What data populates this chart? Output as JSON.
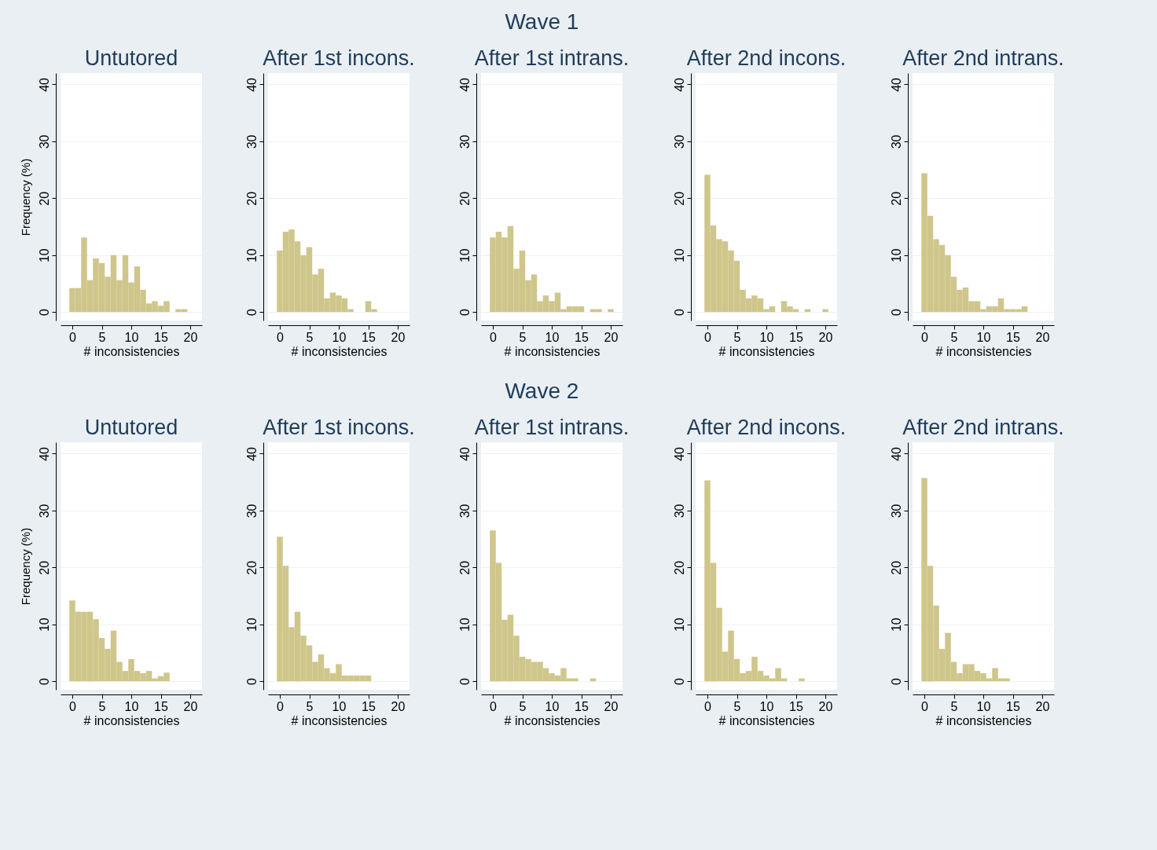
{
  "chart_data": [
    {
      "type": "other",
      "title": "Wave 1"
    },
    {
      "type": "histogram",
      "title": "Untutored",
      "xlabel": "# inconsistencies",
      "ylabel": "Frequency (%)",
      "color": "#cfc68b",
      "grid": "y",
      "xlim": [
        -2,
        22
      ],
      "ylim": [
        -1.5,
        42
      ],
      "xticks": [
        0,
        5,
        10,
        15,
        20
      ],
      "yticks": [
        0,
        10,
        20,
        30,
        40
      ],
      "bins": [
        -0.5,
        0.5,
        1.5,
        2.5,
        3.5,
        4.5,
        5.5,
        6.5,
        7.5,
        8.5,
        9.5,
        10.5,
        11.5,
        12.5,
        13.5,
        14.5,
        15.5,
        16.5,
        17.5,
        18.5,
        19.5,
        20.5
      ],
      "values": [
        4.2,
        4.2,
        13.1,
        5.6,
        9.4,
        8.6,
        6.2,
        10,
        5.6,
        10,
        5.2,
        8,
        3.9,
        1.5,
        1.9,
        1.1,
        1.9,
        0,
        0.5,
        0.5,
        0
      ]
    },
    {
      "type": "histogram",
      "title": "After 1st incons.",
      "xlabel": "# inconsistencies",
      "color": "#cfc68b",
      "grid": "y",
      "xlim": [
        -2,
        22
      ],
      "ylim": [
        -1.5,
        42
      ],
      "xticks": [
        0,
        5,
        10,
        15,
        20
      ],
      "yticks": [
        0,
        10,
        20,
        30,
        40
      ],
      "bins": [
        -0.5,
        0.5,
        1.5,
        2.5,
        3.5,
        4.5,
        5.5,
        6.5,
        7.5,
        8.5,
        9.5,
        10.5,
        11.5,
        12.5,
        13.5,
        14.5,
        15.5,
        16.5,
        17.5,
        18.5,
        19.5,
        20.5
      ],
      "values": [
        10.8,
        14.1,
        14.5,
        12.4,
        10,
        11.4,
        6.6,
        7.6,
        2.4,
        3.4,
        2.9,
        2.4,
        0.5,
        0,
        0,
        1.9,
        0.5,
        0,
        0,
        0,
        0
      ]
    },
    {
      "type": "histogram",
      "title": "After 1st intrans.",
      "xlabel": "# inconsistencies",
      "color": "#cfc68b",
      "grid": "y",
      "xlim": [
        -2,
        22
      ],
      "ylim": [
        -1.5,
        42
      ],
      "xticks": [
        0,
        5,
        10,
        15,
        20
      ],
      "yticks": [
        0,
        10,
        20,
        30,
        40
      ],
      "bins": [
        -0.5,
        0.5,
        1.5,
        2.5,
        3.5,
        4.5,
        5.5,
        6.5,
        7.5,
        8.5,
        9.5,
        10.5,
        11.5,
        12.5,
        13.5,
        14.5,
        15.5,
        16.5,
        17.5,
        18.5,
        19.5,
        20.5
      ],
      "values": [
        13.1,
        14.1,
        13.1,
        15.1,
        7.6,
        10.8,
        5.6,
        6.6,
        1.9,
        2.9,
        1.9,
        3.4,
        0.5,
        1,
        1,
        1,
        0,
        0.5,
        0.5,
        0,
        0.5
      ]
    },
    {
      "type": "histogram",
      "title": "After 2nd incons.",
      "xlabel": "# inconsistencies",
      "color": "#cfc68b",
      "grid": "y",
      "xlim": [
        -2,
        22
      ],
      "ylim": [
        -1.5,
        42
      ],
      "xticks": [
        0,
        5,
        10,
        15,
        20
      ],
      "yticks": [
        0,
        10,
        20,
        30,
        40
      ],
      "bins": [
        -0.5,
        0.5,
        1.5,
        2.5,
        3.5,
        4.5,
        5.5,
        6.5,
        7.5,
        8.5,
        9.5,
        10.5,
        11.5,
        12.5,
        13.5,
        14.5,
        15.5,
        16.5,
        17.5,
        18.5,
        19.5,
        20.5
      ],
      "values": [
        24.1,
        15.2,
        12.8,
        12.4,
        10.8,
        9,
        3.9,
        2.4,
        2.9,
        2.4,
        0.5,
        1,
        0,
        1.9,
        1,
        0.5,
        0,
        0.5,
        0,
        0,
        0.5
      ]
    },
    {
      "type": "histogram",
      "title": "After 2nd intrans.",
      "xlabel": "# inconsistencies",
      "color": "#cfc68b",
      "grid": "y",
      "xlim": [
        -2,
        22
      ],
      "ylim": [
        -1.5,
        42
      ],
      "xticks": [
        0,
        5,
        10,
        15,
        20
      ],
      "yticks": [
        0,
        10,
        20,
        30,
        40
      ],
      "bins": [
        -0.5,
        0.5,
        1.5,
        2.5,
        3.5,
        4.5,
        5.5,
        6.5,
        7.5,
        8.5,
        9.5,
        10.5,
        11.5,
        12.5,
        13.5,
        14.5,
        15.5,
        16.5,
        17.5,
        18.5,
        19.5,
        20.5
      ],
      "values": [
        24.4,
        16.9,
        12.8,
        11.8,
        10,
        6.2,
        3.9,
        4.3,
        1.9,
        1.9,
        0.5,
        1,
        1,
        2.4,
        0.5,
        0.5,
        0.5,
        1,
        0,
        0,
        0
      ]
    },
    {
      "type": "other",
      "title": "Wave 2"
    },
    {
      "type": "histogram",
      "title": "Untutored",
      "xlabel": "# inconsistencies",
      "ylabel": "Frequency (%)",
      "color": "#cfc68b",
      "grid": "y",
      "xlim": [
        -2,
        22
      ],
      "ylim": [
        -1.5,
        42
      ],
      "xticks": [
        0,
        5,
        10,
        15,
        20
      ],
      "yticks": [
        0,
        10,
        20,
        30,
        40
      ],
      "bins": [
        -0.5,
        0.5,
        1.5,
        2.5,
        3.5,
        4.5,
        5.5,
        6.5,
        7.5,
        8.5,
        9.5,
        10.5,
        11.5,
        12.5,
        13.5,
        14.5,
        15.5,
        16.5,
        17.5,
        18.5,
        19.5,
        20.5
      ],
      "values": [
        14.2,
        12.2,
        12.2,
        12.2,
        10.9,
        7.6,
        5.7,
        8.9,
        3.4,
        1.8,
        3.9,
        1.8,
        1.4,
        1.8,
        0.5,
        0.9,
        1.5,
        0,
        0,
        0,
        0
      ]
    },
    {
      "type": "histogram",
      "title": "After 1st incons.",
      "xlabel": "# inconsistencies",
      "color": "#cfc68b",
      "grid": "y",
      "xlim": [
        -2,
        22
      ],
      "ylim": [
        -1.5,
        42
      ],
      "xticks": [
        0,
        5,
        10,
        15,
        20
      ],
      "yticks": [
        0,
        10,
        20,
        30,
        40
      ],
      "bins": [
        -0.5,
        0.5,
        1.5,
        2.5,
        3.5,
        4.5,
        5.5,
        6.5,
        7.5,
        8.5,
        9.5,
        10.5,
        11.5,
        12.5,
        13.5,
        14.5,
        15.5,
        16.5,
        17.5,
        18.5,
        19.5,
        20.5
      ],
      "values": [
        25.4,
        20.3,
        9.5,
        12.2,
        8,
        6.3,
        3.4,
        4.7,
        2.3,
        1.4,
        3,
        1,
        1,
        1,
        1,
        1,
        0,
        0,
        0,
        0,
        0
      ]
    },
    {
      "type": "histogram",
      "title": "After 1st intrans.",
      "xlabel": "# inconsistencies",
      "color": "#cfc68b",
      "grid": "y",
      "xlim": [
        -2,
        22
      ],
      "ylim": [
        -1.5,
        42
      ],
      "xticks": [
        0,
        5,
        10,
        15,
        20
      ],
      "yticks": [
        0,
        10,
        20,
        30,
        40
      ],
      "bins": [
        -0.5,
        0.5,
        1.5,
        2.5,
        3.5,
        4.5,
        5.5,
        6.5,
        7.5,
        8.5,
        9.5,
        10.5,
        11.5,
        12.5,
        13.5,
        14.5,
        15.5,
        16.5,
        17.5,
        18.5,
        19.5,
        20.5
      ],
      "values": [
        26.5,
        20.8,
        10.8,
        11.7,
        8,
        4.3,
        3.9,
        3.4,
        3.4,
        2.3,
        1.4,
        1,
        2.3,
        0.5,
        0.5,
        0,
        0,
        0.5,
        0,
        0,
        0
      ]
    },
    {
      "type": "histogram",
      "title": "After 2nd incons.",
      "xlabel": "# inconsistencies",
      "color": "#cfc68b",
      "grid": "y",
      "xlim": [
        -2,
        22
      ],
      "ylim": [
        -1.5,
        42
      ],
      "xticks": [
        0,
        5,
        10,
        15,
        20
      ],
      "yticks": [
        0,
        10,
        20,
        30,
        40
      ],
      "bins": [
        -0.5,
        0.5,
        1.5,
        2.5,
        3.5,
        4.5,
        5.5,
        6.5,
        7.5,
        8.5,
        9.5,
        10.5,
        11.5,
        12.5,
        13.5,
        14.5,
        15.5,
        16.5,
        17.5,
        18.5,
        19.5,
        20.5
      ],
      "values": [
        35.3,
        20.8,
        12.9,
        5.2,
        8.9,
        3.9,
        1.4,
        1.8,
        4.3,
        1.8,
        1,
        0.5,
        2.3,
        0.5,
        0,
        0,
        0.5,
        0,
        0,
        0,
        0
      ]
    },
    {
      "type": "histogram",
      "title": "After 2nd intrans.",
      "xlabel": "# inconsistencies",
      "color": "#cfc68b",
      "grid": "y",
      "xlim": [
        -2,
        22
      ],
      "ylim": [
        -1.5,
        42
      ],
      "xticks": [
        0,
        5,
        10,
        15,
        20
      ],
      "yticks": [
        0,
        10,
        20,
        30,
        40
      ],
      "bins": [
        -0.5,
        0.5,
        1.5,
        2.5,
        3.5,
        4.5,
        5.5,
        6.5,
        7.5,
        8.5,
        9.5,
        10.5,
        11.5,
        12.5,
        13.5,
        14.5,
        15.5,
        16.5,
        17.5,
        18.5,
        19.5,
        20.5
      ],
      "values": [
        35.7,
        20.3,
        13.3,
        5.7,
        8.5,
        3.4,
        1.4,
        3,
        3,
        1.8,
        1.4,
        0.5,
        2.3,
        0.5,
        0.5,
        0,
        0,
        0,
        0,
        0,
        0
      ]
    }
  ]
}
